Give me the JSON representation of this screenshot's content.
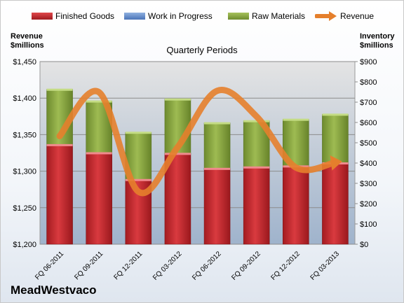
{
  "colors": {
    "finished": "#c0262b",
    "wip": "#5b86c6",
    "raw": "#85a23f",
    "revenue": "#e57f2c"
  },
  "legend": [
    {
      "label": "Finished Goods",
      "key": "finished"
    },
    {
      "label": "Work in Progress",
      "key": "wip"
    },
    {
      "label": "Raw Materials",
      "key": "raw"
    },
    {
      "label": "Revenue",
      "key": "revenue"
    }
  ],
  "left_axis_title": "Revenue\n$millions",
  "right_axis_title": "Inventory\n$millions",
  "company": "MeadWestvaco",
  "chart_data": {
    "type": "bar",
    "title": "Quarterly Periods",
    "categories": [
      "FQ 06-2011",
      "FQ 09-2011",
      "FQ 12-2011",
      "FQ 03-2012",
      "FQ 06-2012",
      "FQ 09-2012",
      "FQ 12-2012",
      "FQ 03-2013"
    ],
    "series": [
      {
        "name": "Finished Goods",
        "axis": "right",
        "stack": true,
        "values": [
          490,
          450,
          318,
          447,
          373,
          380,
          385,
          400
        ]
      },
      {
        "name": "Work in Progress",
        "axis": "right",
        "stack": true,
        "values": [
          0,
          0,
          0,
          0,
          0,
          0,
          0,
          0
        ]
      },
      {
        "name": "Raw Materials",
        "axis": "right",
        "stack": true,
        "values": [
          273,
          255,
          233,
          268,
          225,
          228,
          230,
          240
        ]
      },
      {
        "name": "Revenue",
        "axis": "left",
        "type": "line",
        "values": [
          1348,
          1408,
          1272,
          1333,
          1410,
          1375,
          1305,
          1312
        ]
      }
    ],
    "left_axis": {
      "ylim": [
        1200,
        1450
      ],
      "ticks": [
        "$1,200",
        "$1,250",
        "$1,300",
        "$1,350",
        "$1,400",
        "$1,450"
      ]
    },
    "right_axis": {
      "ylim": [
        0,
        900
      ],
      "ticks": [
        "$0",
        "$100",
        "$200",
        "$300",
        "$400",
        "$500",
        "$600",
        "$700",
        "$800",
        "$900"
      ]
    },
    "grid": true,
    "legend_position": "top"
  }
}
